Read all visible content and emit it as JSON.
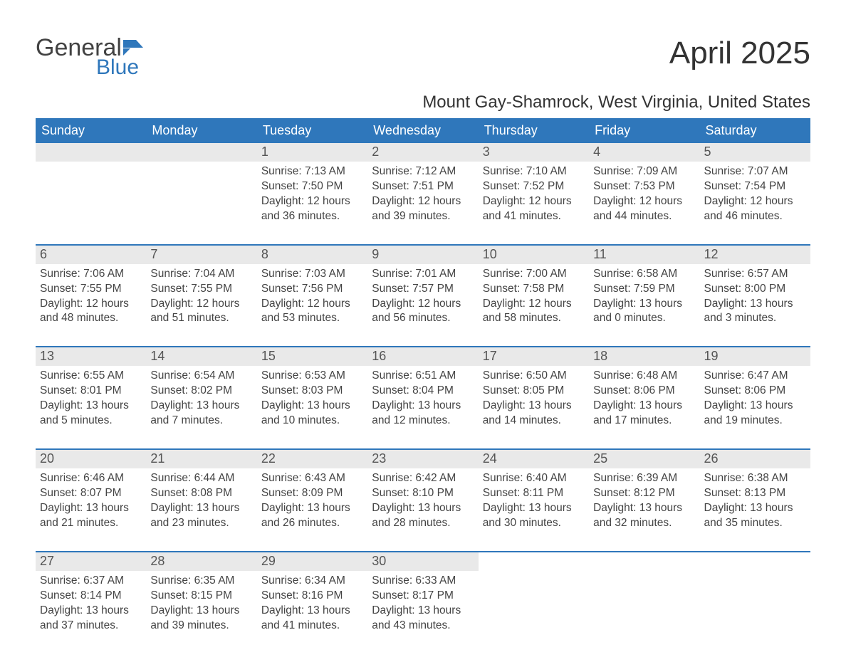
{
  "logo": {
    "text1": "General",
    "text2": "Blue",
    "icon_color": "#2f77bb",
    "text1_color": "#424242"
  },
  "title": "April 2025",
  "subtitle": "Mount Gay-Shamrock, West Virginia, United States",
  "colors": {
    "header_bg": "#2f77bb",
    "header_text": "#ffffff",
    "daynum_bg": "#e9e9e9",
    "border": "#2f77bb",
    "body_text": "#444444",
    "background": "#ffffff"
  },
  "typography": {
    "title_fontsize": 44,
    "subtitle_fontsize": 24,
    "header_fontsize": 18,
    "daynum_fontsize": 18,
    "body_fontsize": 15.5
  },
  "calendar": {
    "day_headers": [
      "Sunday",
      "Monday",
      "Tuesday",
      "Wednesday",
      "Thursday",
      "Friday",
      "Saturday"
    ],
    "weeks": [
      [
        {
          "empty": true
        },
        {
          "empty": true
        },
        {
          "num": "1",
          "sunrise": "Sunrise: 7:13 AM",
          "sunset": "Sunset: 7:50 PM",
          "day1": "Daylight: 12 hours",
          "day2": "and 36 minutes."
        },
        {
          "num": "2",
          "sunrise": "Sunrise: 7:12 AM",
          "sunset": "Sunset: 7:51 PM",
          "day1": "Daylight: 12 hours",
          "day2": "and 39 minutes."
        },
        {
          "num": "3",
          "sunrise": "Sunrise: 7:10 AM",
          "sunset": "Sunset: 7:52 PM",
          "day1": "Daylight: 12 hours",
          "day2": "and 41 minutes."
        },
        {
          "num": "4",
          "sunrise": "Sunrise: 7:09 AM",
          "sunset": "Sunset: 7:53 PM",
          "day1": "Daylight: 12 hours",
          "day2": "and 44 minutes."
        },
        {
          "num": "5",
          "sunrise": "Sunrise: 7:07 AM",
          "sunset": "Sunset: 7:54 PM",
          "day1": "Daylight: 12 hours",
          "day2": "and 46 minutes."
        }
      ],
      [
        {
          "num": "6",
          "sunrise": "Sunrise: 7:06 AM",
          "sunset": "Sunset: 7:55 PM",
          "day1": "Daylight: 12 hours",
          "day2": "and 48 minutes."
        },
        {
          "num": "7",
          "sunrise": "Sunrise: 7:04 AM",
          "sunset": "Sunset: 7:55 PM",
          "day1": "Daylight: 12 hours",
          "day2": "and 51 minutes."
        },
        {
          "num": "8",
          "sunrise": "Sunrise: 7:03 AM",
          "sunset": "Sunset: 7:56 PM",
          "day1": "Daylight: 12 hours",
          "day2": "and 53 minutes."
        },
        {
          "num": "9",
          "sunrise": "Sunrise: 7:01 AM",
          "sunset": "Sunset: 7:57 PM",
          "day1": "Daylight: 12 hours",
          "day2": "and 56 minutes."
        },
        {
          "num": "10",
          "sunrise": "Sunrise: 7:00 AM",
          "sunset": "Sunset: 7:58 PM",
          "day1": "Daylight: 12 hours",
          "day2": "and 58 minutes."
        },
        {
          "num": "11",
          "sunrise": "Sunrise: 6:58 AM",
          "sunset": "Sunset: 7:59 PM",
          "day1": "Daylight: 13 hours",
          "day2": "and 0 minutes."
        },
        {
          "num": "12",
          "sunrise": "Sunrise: 6:57 AM",
          "sunset": "Sunset: 8:00 PM",
          "day1": "Daylight: 13 hours",
          "day2": "and 3 minutes."
        }
      ],
      [
        {
          "num": "13",
          "sunrise": "Sunrise: 6:55 AM",
          "sunset": "Sunset: 8:01 PM",
          "day1": "Daylight: 13 hours",
          "day2": "and 5 minutes."
        },
        {
          "num": "14",
          "sunrise": "Sunrise: 6:54 AM",
          "sunset": "Sunset: 8:02 PM",
          "day1": "Daylight: 13 hours",
          "day2": "and 7 minutes."
        },
        {
          "num": "15",
          "sunrise": "Sunrise: 6:53 AM",
          "sunset": "Sunset: 8:03 PM",
          "day1": "Daylight: 13 hours",
          "day2": "and 10 minutes."
        },
        {
          "num": "16",
          "sunrise": "Sunrise: 6:51 AM",
          "sunset": "Sunset: 8:04 PM",
          "day1": "Daylight: 13 hours",
          "day2": "and 12 minutes."
        },
        {
          "num": "17",
          "sunrise": "Sunrise: 6:50 AM",
          "sunset": "Sunset: 8:05 PM",
          "day1": "Daylight: 13 hours",
          "day2": "and 14 minutes."
        },
        {
          "num": "18",
          "sunrise": "Sunrise: 6:48 AM",
          "sunset": "Sunset: 8:06 PM",
          "day1": "Daylight: 13 hours",
          "day2": "and 17 minutes."
        },
        {
          "num": "19",
          "sunrise": "Sunrise: 6:47 AM",
          "sunset": "Sunset: 8:06 PM",
          "day1": "Daylight: 13 hours",
          "day2": "and 19 minutes."
        }
      ],
      [
        {
          "num": "20",
          "sunrise": "Sunrise: 6:46 AM",
          "sunset": "Sunset: 8:07 PM",
          "day1": "Daylight: 13 hours",
          "day2": "and 21 minutes."
        },
        {
          "num": "21",
          "sunrise": "Sunrise: 6:44 AM",
          "sunset": "Sunset: 8:08 PM",
          "day1": "Daylight: 13 hours",
          "day2": "and 23 minutes."
        },
        {
          "num": "22",
          "sunrise": "Sunrise: 6:43 AM",
          "sunset": "Sunset: 8:09 PM",
          "day1": "Daylight: 13 hours",
          "day2": "and 26 minutes."
        },
        {
          "num": "23",
          "sunrise": "Sunrise: 6:42 AM",
          "sunset": "Sunset: 8:10 PM",
          "day1": "Daylight: 13 hours",
          "day2": "and 28 minutes."
        },
        {
          "num": "24",
          "sunrise": "Sunrise: 6:40 AM",
          "sunset": "Sunset: 8:11 PM",
          "day1": "Daylight: 13 hours",
          "day2": "and 30 minutes."
        },
        {
          "num": "25",
          "sunrise": "Sunrise: 6:39 AM",
          "sunset": "Sunset: 8:12 PM",
          "day1": "Daylight: 13 hours",
          "day2": "and 32 minutes."
        },
        {
          "num": "26",
          "sunrise": "Sunrise: 6:38 AM",
          "sunset": "Sunset: 8:13 PM",
          "day1": "Daylight: 13 hours",
          "day2": "and 35 minutes."
        }
      ],
      [
        {
          "num": "27",
          "sunrise": "Sunrise: 6:37 AM",
          "sunset": "Sunset: 8:14 PM",
          "day1": "Daylight: 13 hours",
          "day2": "and 37 minutes."
        },
        {
          "num": "28",
          "sunrise": "Sunrise: 6:35 AM",
          "sunset": "Sunset: 8:15 PM",
          "day1": "Daylight: 13 hours",
          "day2": "and 39 minutes."
        },
        {
          "num": "29",
          "sunrise": "Sunrise: 6:34 AM",
          "sunset": "Sunset: 8:16 PM",
          "day1": "Daylight: 13 hours",
          "day2": "and 41 minutes."
        },
        {
          "num": "30",
          "sunrise": "Sunrise: 6:33 AM",
          "sunset": "Sunset: 8:17 PM",
          "day1": "Daylight: 13 hours",
          "day2": "and 43 minutes."
        },
        {
          "empty": true
        },
        {
          "empty": true
        },
        {
          "empty": true
        }
      ]
    ]
  }
}
